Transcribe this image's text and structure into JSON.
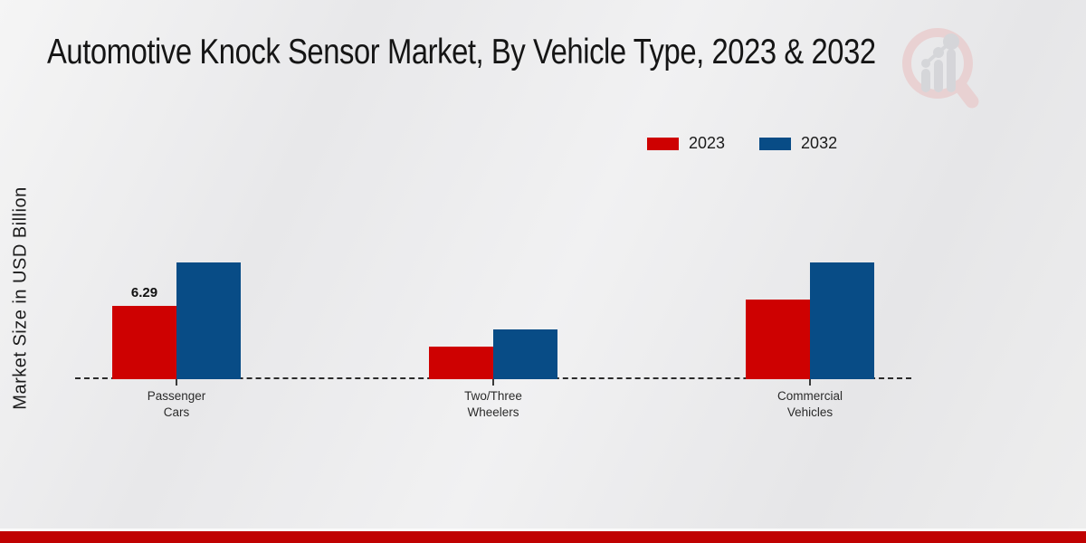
{
  "title": "Automotive Knock Sensor Market, By Vehicle Type, 2023 & 2032",
  "y_axis_label": "Market Size in USD Billion",
  "legend": [
    {
      "label": "2023",
      "color": "#ce0101"
    },
    {
      "label": "2032",
      "color": "#084c86"
    }
  ],
  "colors": {
    "series_2023": "#ce0101",
    "series_2032": "#084c86",
    "footer_band": "#c00101",
    "baseline": "#2b2b2b",
    "logo_ring": "#e9cfd0",
    "logo_bars": "#d3d4d8"
  },
  "chart_data": {
    "type": "bar",
    "title": "Automotive Knock Sensor Market, By Vehicle Type, 2023 & 2032",
    "xlabel": "",
    "ylabel": "Market Size in USD Billion",
    "categories": [
      "Passenger Cars",
      "Two/Three Wheelers",
      "Commercial Vehicles"
    ],
    "series": [
      {
        "name": "2023",
        "color": "#ce0101",
        "values": [
          6.29,
          2.8,
          6.8
        ]
      },
      {
        "name": "2032",
        "color": "#084c86",
        "values": [
          10.0,
          4.3,
          10.0
        ]
      }
    ],
    "value_labels": [
      {
        "category_index": 0,
        "series_index": 0,
        "text": "6.29"
      }
    ],
    "ylim": [
      0,
      12
    ],
    "grid": false,
    "legend_position": "top-right",
    "baseline_style": "dashed"
  }
}
